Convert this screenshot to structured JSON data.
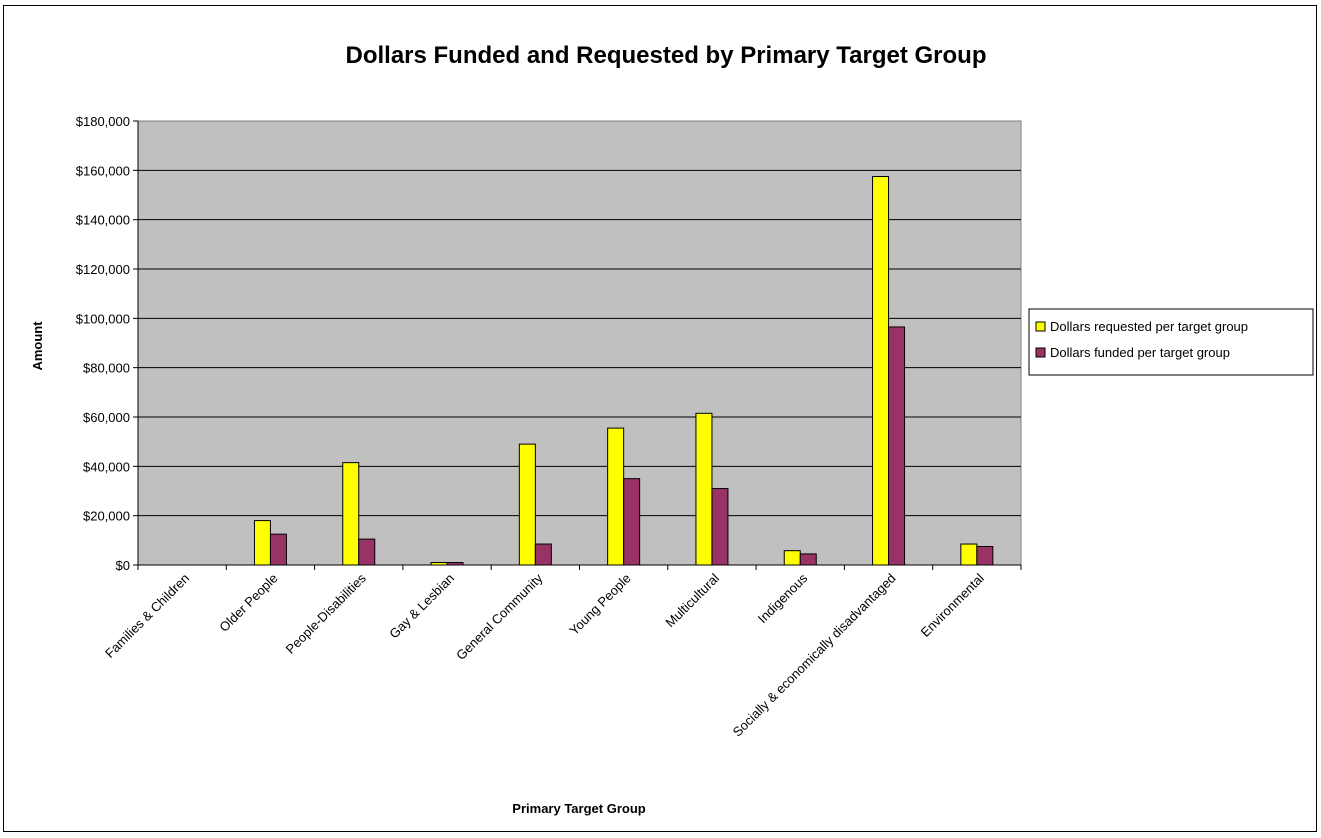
{
  "chart_data": {
    "type": "bar",
    "title": "Dollars Funded and Requested by Primary Target Group",
    "xlabel": "Primary Target Group",
    "ylabel": "Amount",
    "ylim": [
      0,
      180000
    ],
    "yticks": [
      "$0",
      "$20,000",
      "$40,000",
      "$60,000",
      "$80,000",
      "$100,000",
      "$120,000",
      "$140,000",
      "$160,000",
      "$180,000"
    ],
    "categories": [
      "Families & Children",
      "Older People",
      "People-Disabilities",
      "Gay & Lesbian",
      "General Community",
      "Young People",
      "Multicultural",
      "Indigenous",
      "Socially & economically disadvantaged",
      "Environmental"
    ],
    "series": [
      {
        "name": "Dollars requested per target group",
        "color": "#FFFF00",
        "values": [
          0,
          18000,
          41500,
          1000,
          49000,
          55500,
          61500,
          5800,
          157500,
          8500
        ]
      },
      {
        "name": "Dollars funded per target group",
        "color": "#993366",
        "values": [
          0,
          12500,
          10500,
          1000,
          8500,
          35000,
          31000,
          4500,
          96500,
          7500
        ]
      }
    ],
    "plot_background": "#C0C0C0",
    "grid": true,
    "legend_position": "right"
  }
}
